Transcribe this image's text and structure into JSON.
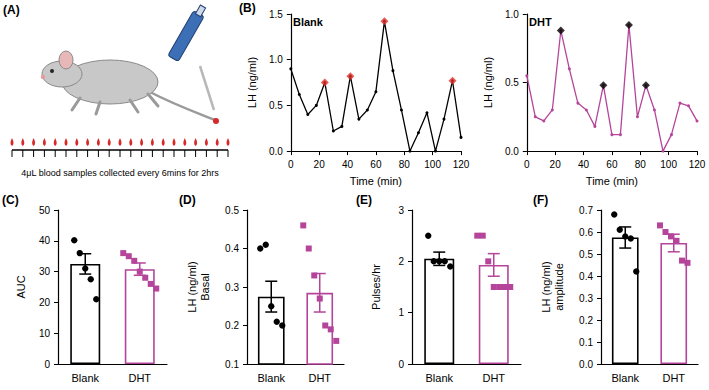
{
  "illustration": {
    "panel": "(A)",
    "caption": "4μL blood samples collected every 6mins for 2hrs",
    "color": "#d62a2a"
  },
  "chart_data": [
    {
      "type": "line",
      "panel": "(B)",
      "title": "Blank",
      "xlabel": "Time (min)",
      "ylabel": "LH (ng/ml)",
      "x": [
        0,
        6,
        12,
        18,
        24,
        30,
        36,
        42,
        48,
        54,
        60,
        66,
        72,
        78,
        84,
        90,
        96,
        102,
        108,
        114,
        120
      ],
      "series": [
        {
          "color": "#000000",
          "marker": "circle",
          "values": [
            0.9,
            0.62,
            0.4,
            0.5,
            0.75,
            0.22,
            0.27,
            0.82,
            0.35,
            0.45,
            0.65,
            1.42,
            0.88,
            0.45,
            0.0,
            0.2,
            0.42,
            0.0,
            0.35,
            0.77,
            0.15
          ]
        },
        {
          "type": "scatter",
          "color": "#e0302a",
          "marker": "diamond",
          "values": [
            null,
            null,
            null,
            null,
            0.75,
            null,
            null,
            0.82,
            null,
            null,
            null,
            1.42,
            null,
            null,
            null,
            null,
            null,
            null,
            null,
            0.77,
            null
          ]
        }
      ],
      "xlim": [
        0,
        120
      ],
      "xticks": [
        0,
        20,
        40,
        60,
        80,
        100,
        120
      ],
      "ylim": [
        0,
        1.5
      ],
      "yticks": [
        {
          "value": 0,
          "label": "0.0"
        },
        0.5,
        {
          "value": 1,
          "label": "1.0"
        },
        1.5
      ]
    },
    {
      "type": "line",
      "title": "DHT",
      "xlabel": "Time (min)",
      "ylabel": "LH (ng/ml)",
      "x": [
        0,
        6,
        12,
        18,
        24,
        30,
        36,
        42,
        48,
        54,
        60,
        66,
        72,
        78,
        84,
        90,
        96,
        102,
        108,
        114,
        120
      ],
      "series": [
        {
          "color": "#b5459b",
          "marker": "circle",
          "values": [
            0.55,
            0.25,
            0.22,
            0.3,
            0.88,
            0.6,
            0.35,
            0.3,
            0.18,
            0.48,
            0.12,
            0.12,
            0.92,
            0.25,
            0.48,
            0.3,
            0.0,
            0.12,
            0.35,
            0.33,
            0.22
          ]
        },
        {
          "type": "scatter",
          "color": "#000000",
          "marker": "diamond",
          "values": [
            null,
            null,
            null,
            null,
            0.88,
            null,
            null,
            null,
            null,
            0.48,
            null,
            null,
            0.92,
            null,
            0.48,
            null,
            null,
            null,
            null,
            null,
            null
          ]
        }
      ],
      "xlim": [
        0,
        120
      ],
      "xticks": [
        0,
        20,
        40,
        60,
        80,
        100,
        120
      ],
      "ylim": [
        0,
        1.0
      ],
      "yticks": [
        {
          "value": 0,
          "label": "0.0"
        },
        0.5,
        {
          "value": 1,
          "label": "1.0"
        }
      ]
    },
    {
      "type": "bar",
      "panel": "(C)",
      "ylabel": "AUC",
      "categories": [
        "Blank",
        "DHT"
      ],
      "values": [
        32.5,
        30.8
      ],
      "errors": [
        3.3,
        2.0
      ],
      "colors": [
        "#000000",
        "#b5459b"
      ],
      "points": [
        {
          "marker": "circle",
          "values": [
            40.2,
            36,
            31,
            27.5,
            21
          ]
        },
        {
          "marker": "square",
          "values": [
            36,
            35,
            33.5,
            30,
            28,
            26,
            24.5
          ]
        }
      ],
      "ylim": [
        0,
        50
      ],
      "yticks": [
        0,
        10,
        20,
        30,
        40,
        50
      ]
    },
    {
      "type": "bar",
      "panel": "(D)",
      "ylabel": "LH (ng/ml)\nBasal",
      "categories": [
        "Blank",
        "DHT"
      ],
      "values": [
        0.275,
        0.285
      ],
      "errors": [
        0.04,
        0.05
      ],
      "colors": [
        "#000000",
        "#b5459b"
      ],
      "points": [
        {
          "marker": "circle",
          "values": [
            0.4,
            0.41,
            0.25,
            0.21,
            0.2
          ]
        },
        {
          "marker": "square",
          "values": [
            0.46,
            0.4,
            0.33,
            0.27,
            0.2,
            0.19,
            0.16
          ]
        }
      ],
      "ylim": [
        0.1,
        0.5
      ],
      "yticks": [
        0.1,
        0.2,
        0.3,
        0.4,
        0.5
      ]
    },
    {
      "type": "bar",
      "panel": "(E)",
      "ylabel": "Pulses/hr",
      "categories": [
        "Blank",
        "DHT"
      ],
      "values": [
        2.05,
        1.93
      ],
      "errors": [
        0.13,
        0.22
      ],
      "colors": [
        "#000000",
        "#b5459b"
      ],
      "points": [
        {
          "marker": "circle",
          "values": [
            2.5,
            2,
            2,
            2,
            1.9
          ]
        },
        {
          "marker": "square",
          "values": [
            2.5,
            2.5,
            2,
            1.5,
            1.5,
            1.5,
            1.5
          ]
        }
      ],
      "ylim": [
        0,
        3
      ],
      "yticks": [
        0,
        1,
        2,
        3
      ]
    },
    {
      "type": "bar",
      "panel": "(F)",
      "ylabel": "LH (ng/ml)\namplitude",
      "categories": [
        "Blank",
        "DHT"
      ],
      "values": [
        0.575,
        0.55
      ],
      "errors": [
        0.048,
        0.04
      ],
      "colors": [
        "#000000",
        "#b5459b"
      ],
      "points": [
        {
          "marker": "circle",
          "values": [
            0.68,
            0.61,
            0.58,
            0.57,
            0.42
          ]
        },
        {
          "marker": "square",
          "values": [
            0.63,
            0.6,
            0.58,
            0.56,
            0.47,
            0.46
          ]
        }
      ],
      "ylim": [
        0,
        0.7
      ],
      "yticks": [
        {
          "value": 0,
          "label": "0.0"
        },
        0.1,
        0.2,
        0.3,
        0.4,
        0.5,
        0.6,
        0.7
      ]
    }
  ]
}
